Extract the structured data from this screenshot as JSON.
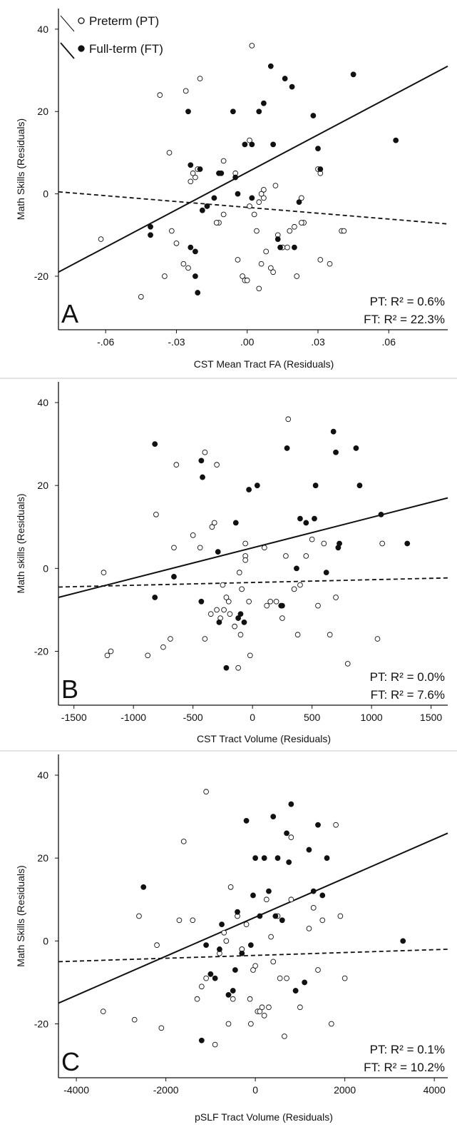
{
  "legend": {
    "preterm_label": "Preterm (PT)",
    "fullterm_label": "Full-term (FT)"
  },
  "colors": {
    "ink": "#111111",
    "open_marker_fill": "#ffffff",
    "separator": "#c8c8c8"
  },
  "chart_data": [
    {
      "type": "scatter",
      "panel_label": "A",
      "xlabel": "CST Mean Tract FA (Residuals)",
      "ylabel": "Math Skills (Residuals)",
      "xlim": [
        -0.08,
        0.085
      ],
      "ylim": [
        -33,
        45
      ],
      "xticks": [
        -0.06,
        -0.03,
        0.0,
        0.03,
        0.06
      ],
      "xtick_labels": [
        "-.06",
        "-.03",
        ".00",
        ".03",
        ".06"
      ],
      "yticks": [
        -20,
        0,
        20,
        40
      ],
      "ytick_labels": [
        "-20",
        "0",
        "20",
        "40"
      ],
      "stats": {
        "pt": "PT: R² =   0.6%",
        "ft": "FT: R² = 22.3%"
      },
      "series": [
        {
          "name": "Preterm (PT)",
          "marker": "open",
          "fit": {
            "style": "dashed",
            "x": [
              -0.08,
              0.085
            ],
            "y": [
              0.5,
              -7.3
            ]
          },
          "x": [
            0.002,
            -0.037,
            -0.02,
            -0.026,
            -0.025,
            -0.062,
            -0.035,
            -0.027,
            -0.03,
            -0.045,
            -0.032,
            -0.033,
            -0.022,
            -0.024,
            -0.023,
            -0.021,
            -0.012,
            -0.01,
            -0.005,
            -0.013,
            0.003,
            0.001,
            0.005,
            0.007,
            0.013,
            0.018,
            0.02,
            0.024,
            0.023,
            0.03,
            0.035,
            0.04,
            0.041,
            0.031,
            0.031,
            0.023,
            0.021,
            0.017,
            0.015,
            0.012,
            0.01,
            0.008,
            0.006,
            0.005,
            -0.002,
            -0.004,
            -0.001,
            0.0,
            0.001,
            0.006,
            0.007,
            0.011,
            0.004,
            -0.01
          ],
          "y": [
            36,
            24,
            28,
            25,
            -18,
            -11,
            -20,
            -17,
            -12,
            -25,
            -9,
            10,
            4,
            3,
            5,
            6,
            -7,
            8,
            5,
            -7,
            -5,
            -3,
            -2,
            -1,
            -10,
            -9,
            -8,
            -7,
            -7,
            6,
            -17,
            -9,
            -9,
            -16,
            5,
            -1,
            -20,
            -13,
            -13,
            2,
            -18,
            -14,
            -17,
            -23,
            -20,
            -16,
            -21,
            -21,
            13,
            0,
            1,
            -19,
            -9,
            -5
          ]
        },
        {
          "name": "Full-term (FT)",
          "marker": "filled",
          "fit": {
            "style": "solid",
            "x": [
              -0.08,
              0.085
            ],
            "y": [
              -19,
              31
            ]
          },
          "x": [
            -0.025,
            -0.024,
            -0.024,
            -0.022,
            -0.022,
            -0.021,
            -0.02,
            -0.019,
            -0.017,
            -0.014,
            -0.012,
            -0.011,
            -0.006,
            -0.005,
            -0.004,
            -0.001,
            0.002,
            0.002,
            0.005,
            0.007,
            0.01,
            0.011,
            0.013,
            0.014,
            0.016,
            0.019,
            0.02,
            0.022,
            0.028,
            0.03,
            0.031,
            0.045,
            0.063,
            -0.041,
            -0.041
          ],
          "y": [
            20,
            7,
            -13,
            -14,
            -20,
            -24,
            6,
            -4,
            -3,
            -1,
            5,
            5,
            20,
            4,
            0,
            12,
            12,
            -1,
            20,
            22,
            31,
            12,
            -11,
            -13,
            28,
            26,
            -13,
            -2,
            19,
            11,
            6,
            29,
            13,
            -8,
            -10
          ]
        }
      ]
    },
    {
      "type": "scatter",
      "panel_label": "B",
      "xlabel": "CST Tract Volume (Residuals)",
      "ylabel": "Math skills (Residuals)",
      "xlim": [
        -1630,
        1640
      ],
      "ylim": [
        -33,
        45
      ],
      "xticks": [
        -1500,
        -1000,
        -500,
        0,
        500,
        1000,
        1500
      ],
      "xtick_labels": [
        "-1500",
        "-1000",
        "-500",
        "0",
        "500",
        "1000",
        "1500"
      ],
      "yticks": [
        -20,
        0,
        20,
        40
      ],
      "ytick_labels": [
        "-20",
        "0",
        "20",
        "40"
      ],
      "stats": {
        "pt": "PT: R² =   0.0%",
        "ft": "FT: R² =   7.6%"
      },
      "series": [
        {
          "name": "Preterm (PT)",
          "marker": "open",
          "fit": {
            "style": "dashed",
            "x": [
              -1630,
              1640
            ],
            "y": [
              -4.5,
              -2.3
            ]
          },
          "x": [
            300,
            -300,
            -640,
            -400,
            -810,
            -1250,
            -1220,
            -1190,
            -880,
            -750,
            -690,
            -660,
            -500,
            -440,
            -400,
            -350,
            -340,
            -320,
            -300,
            -270,
            -240,
            -200,
            -100,
            -60,
            -60,
            -20,
            100,
            120,
            150,
            200,
            250,
            280,
            350,
            380,
            400,
            450,
            500,
            550,
            600,
            650,
            700,
            800,
            1050,
            1090,
            -120,
            -90,
            -30,
            -250,
            -220,
            -190,
            -150,
            -110,
            -60
          ],
          "y": [
            36,
            25,
            25,
            28,
            13,
            -1,
            -21,
            -20,
            -21,
            -19,
            -17,
            5,
            8,
            5,
            -17,
            -11,
            10,
            11,
            -10,
            -12,
            -10,
            -8,
            -16,
            3,
            2,
            -21,
            5,
            -9,
            -8,
            -8,
            -12,
            3,
            -5,
            -16,
            -4,
            3,
            7,
            -9,
            6,
            -16,
            -7,
            -23,
            -17,
            6,
            -24,
            -5,
            -8,
            -4,
            -7,
            -11,
            -14,
            -1,
            6
          ]
        },
        {
          "name": "Full-term (FT)",
          "marker": "filled",
          "fit": {
            "style": "solid",
            "x": [
              -1630,
              1640
            ],
            "y": [
              -7,
              17
            ]
          },
          "x": [
            -820,
            -430,
            -420,
            -660,
            -820,
            -430,
            -290,
            -280,
            -220,
            -140,
            -120,
            -100,
            -70,
            -30,
            40,
            240,
            250,
            290,
            370,
            400,
            450,
            520,
            530,
            620,
            680,
            700,
            720,
            730,
            870,
            900,
            1080,
            1300
          ],
          "y": [
            30,
            26,
            22,
            -2,
            -7,
            -8,
            4,
            -13,
            -24,
            11,
            -12,
            -11,
            -13,
            19,
            20,
            -9,
            -9,
            29,
            0,
            12,
            11,
            12,
            20,
            -1,
            33,
            28,
            5,
            6,
            29,
            20,
            13,
            6
          ]
        }
      ]
    },
    {
      "type": "scatter",
      "panel_label": "C",
      "xlabel": "pSLF Tract Volume (Residuals)",
      "ylabel": "Math Skills (Residuals)",
      "xlim": [
        -4400,
        4300
      ],
      "ylim": [
        -33,
        45
      ],
      "xticks": [
        -4000,
        -2000,
        0,
        2000,
        4000
      ],
      "xtick_labels": [
        "-4000",
        "-2000",
        "0",
        "2000",
        "4000"
      ],
      "yticks": [
        -20,
        0,
        20,
        40
      ],
      "ytick_labels": [
        "-20",
        "0",
        "20",
        "40"
      ],
      "stats": {
        "pt": "PT: R² =   0.1%",
        "ft": "FT: R² = 10.2%"
      },
      "series": [
        {
          "name": "Preterm (PT)",
          "marker": "open",
          "fit": {
            "style": "dashed",
            "x": [
              -4400,
              4300
            ],
            "y": [
              -5,
              -2
            ]
          },
          "x": [
            -1100,
            -3400,
            -2700,
            -2600,
            -2200,
            -2100,
            -1700,
            -1600,
            -1400,
            -1300,
            -1200,
            -900,
            -800,
            -700,
            -650,
            -600,
            -550,
            -500,
            -400,
            -300,
            -200,
            -100,
            -50,
            0,
            50,
            100,
            150,
            200,
            250,
            300,
            350,
            400,
            500,
            550,
            650,
            700,
            800,
            900,
            1000,
            1200,
            1300,
            1400,
            1500,
            1700,
            1800,
            1900,
            2000,
            -1100,
            800,
            -300,
            -120
          ],
          "y": [
            36,
            -17,
            -19,
            6,
            -1,
            -21,
            5,
            24,
            5,
            -14,
            -11,
            -25,
            -3,
            2,
            0,
            -20,
            13,
            -14,
            6,
            -2,
            4,
            -20,
            -7,
            -6,
            -17,
            -17,
            -16,
            -18,
            10,
            -16,
            1,
            -5,
            6,
            -9,
            -23,
            -9,
            25,
            -12,
            -16,
            3,
            8,
            -7,
            5,
            -20,
            28,
            6,
            -9,
            -9,
            10,
            -2,
            -14
          ]
        },
        {
          "name": "Full-term (FT)",
          "marker": "filled",
          "fit": {
            "style": "solid",
            "x": [
              -4400,
              4300
            ],
            "y": [
              -15,
              26
            ]
          },
          "x": [
            -2500,
            -1200,
            -1100,
            -1000,
            -900,
            -800,
            -750,
            -600,
            -500,
            -450,
            -400,
            -300,
            -200,
            -100,
            -50,
            0,
            100,
            200,
            300,
            400,
            450,
            500,
            600,
            700,
            750,
            800,
            900,
            1100,
            1200,
            1300,
            1400,
            1500,
            1600,
            3300
          ],
          "y": [
            13,
            -24,
            -1,
            -8,
            -9,
            -2,
            4,
            -13,
            -12,
            -7,
            7,
            -3,
            29,
            -1,
            11,
            20,
            6,
            20,
            12,
            30,
            6,
            20,
            5,
            26,
            19,
            33,
            -12,
            -10,
            22,
            12,
            28,
            11,
            20,
            0
          ]
        }
      ]
    }
  ]
}
